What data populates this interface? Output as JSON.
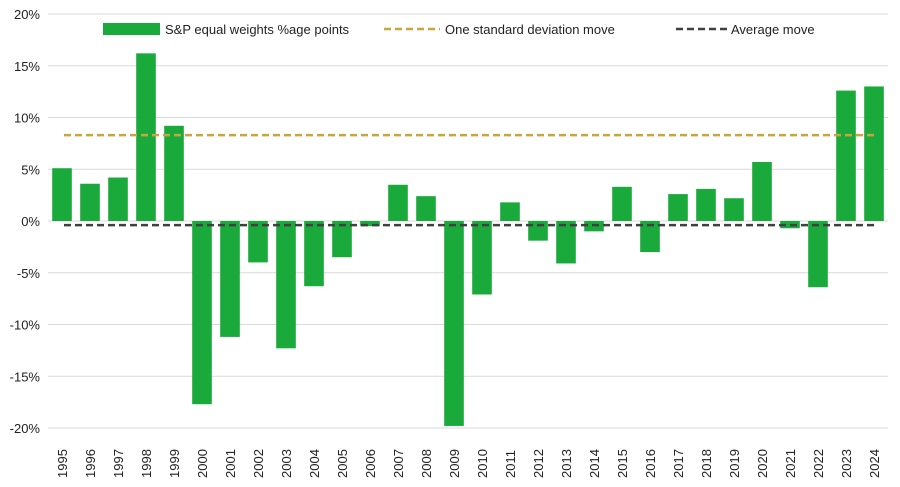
{
  "chart_data": {
    "type": "bar",
    "title": "",
    "xlabel": "",
    "ylabel": "",
    "ylim": [
      -20,
      20
    ],
    "yticks": [
      20,
      15,
      10,
      5,
      0,
      -5,
      -10,
      -15,
      -20
    ],
    "ytick_labels": [
      "20%",
      "15%",
      "10%",
      "5%",
      "0%",
      "-5%",
      "-10%",
      "-15%",
      "-20%"
    ],
    "grid": "horizontal",
    "legend_position": "top",
    "categories": [
      "1995",
      "1996",
      "1997",
      "1998",
      "1999",
      "2000",
      "2001",
      "2002",
      "2003",
      "2004",
      "2005",
      "2006",
      "2007",
      "2008",
      "2009",
      "2010",
      "2011",
      "2012",
      "2013",
      "2014",
      "2015",
      "2016",
      "2017",
      "2018",
      "2019",
      "2020",
      "2021",
      "2022",
      "2023",
      "2024"
    ],
    "series": [
      {
        "name": "S&P equal weights %age points",
        "color": "#1aaa3c",
        "values": [
          5.1,
          3.6,
          4.2,
          16.2,
          9.2,
          -17.7,
          -11.2,
          -4.0,
          -12.3,
          -6.3,
          -3.5,
          -0.5,
          3.5,
          2.4,
          -19.8,
          -7.1,
          1.8,
          -1.9,
          -4.1,
          -1.0,
          3.3,
          -3.0,
          2.6,
          3.1,
          2.2,
          5.7,
          -0.7,
          -6.4,
          12.6,
          13.0
        ]
      }
    ],
    "reference_lines": [
      {
        "name": "One standard deviation move",
        "value": 8.3,
        "color": "#c9a63d",
        "style": "dashed"
      },
      {
        "name": "Average move",
        "value": -0.4,
        "color": "#404040",
        "style": "dashed"
      }
    ]
  }
}
